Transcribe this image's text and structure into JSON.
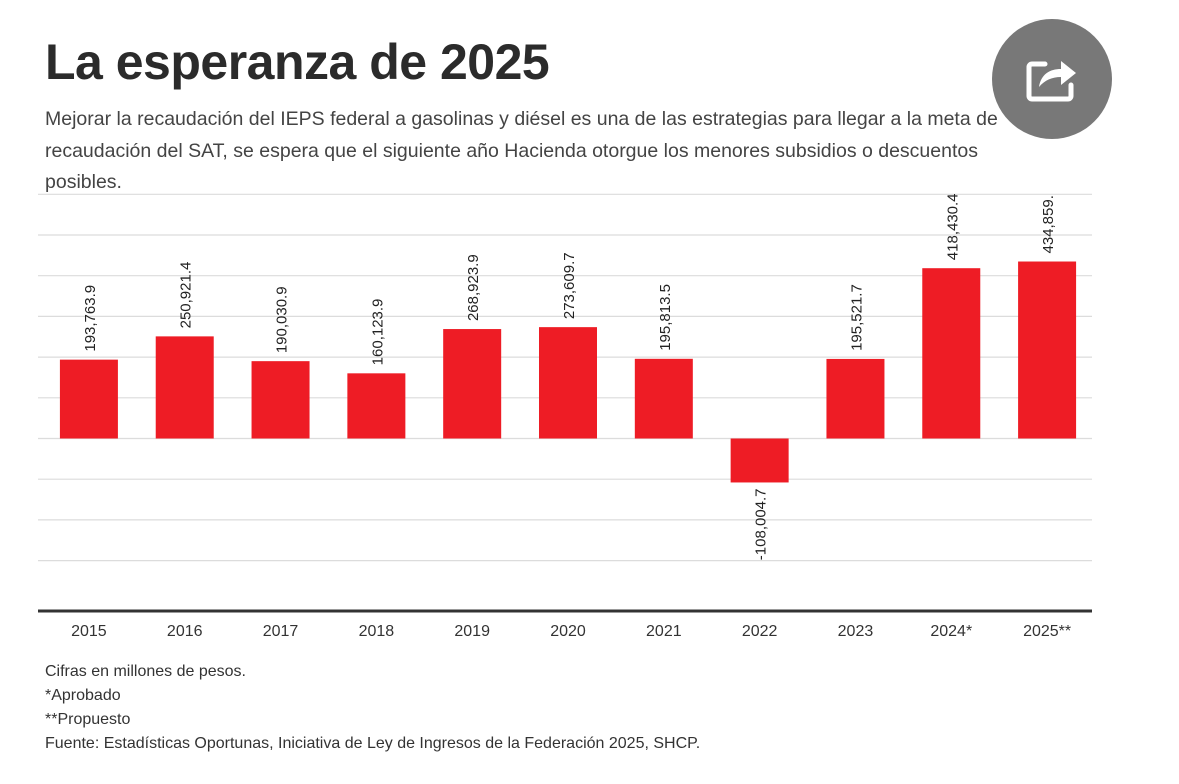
{
  "header": {
    "title": "La esperanza de 2025",
    "subtitle": "Mejorar la recaudación del IEPS federal a gasolinas y diésel es una de las estrategias para llegar a la meta de recaudación del SAT, se espera que el siguiente año Hacienda otorgue los menores subsidios o descuentos posibles."
  },
  "share_button": {
    "icon": "share-icon"
  },
  "chart_data": {
    "type": "bar",
    "categories": [
      "2015",
      "2016",
      "2017",
      "2018",
      "2019",
      "2020",
      "2021",
      "2022",
      "2023",
      "2024*",
      "2025**"
    ],
    "value_labels": [
      "193,763.9",
      "250,921.4",
      "190,030.9",
      "160,123.9",
      "268,923.9",
      "273,609.7",
      "195,813.5",
      "-108,004.7",
      "195,521.7",
      "418,430.4",
      "434,859."
    ],
    "values": [
      193763.9,
      250921.4,
      190030.9,
      160123.9,
      268923.9,
      273609.7,
      195813.5,
      -108004.7,
      195521.7,
      418430.4,
      434859
    ],
    "ylim": [
      -400000,
      600000
    ],
    "gridlines": true,
    "bar_color": "#ee1c25",
    "title": "",
    "xlabel": "",
    "ylabel": ""
  },
  "notes": {
    "units": "Cifras en millones de pesos.",
    "approved": "*Aprobado",
    "proposed": "**Propuesto",
    "source": "Fuente: Estadísticas Oportunas, Iniciativa de Ley de Ingresos de la Federación 2025, SHCP."
  }
}
